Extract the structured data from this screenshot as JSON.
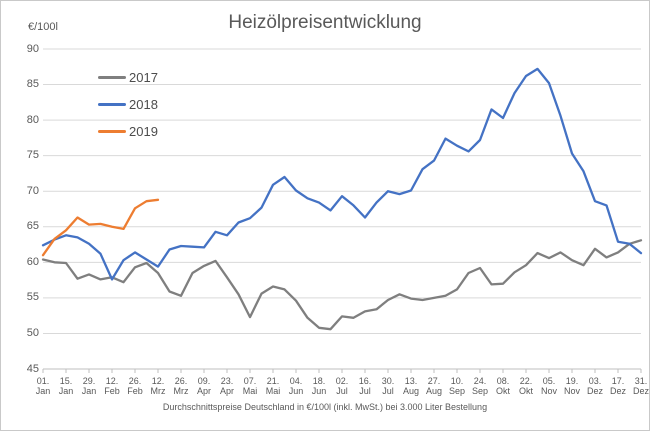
{
  "chart_data": {
    "type": "line",
    "title": "Heizölpreisentwicklung",
    "y_unit_label": "€/100l",
    "subtitle": "Durchschnittspreise Deutschland in €/100l (inkl. MwSt.) bei 3.000 Liter Bestellung",
    "ylim": [
      45,
      90
    ],
    "yticks": [
      45,
      50,
      55,
      60,
      65,
      70,
      75,
      80,
      85,
      90
    ],
    "grid": true,
    "legend_position": "inside-top-left",
    "x_description": "weekly average prices, one point per week from 01. Jan to 31. Dez",
    "x_point_count": 53,
    "xtick_labels": [
      "01. Jan",
      "15. Jan",
      "29. Jan",
      "12. Feb",
      "26. Feb",
      "12. Mrz",
      "26. Mrz",
      "09. Apr",
      "23. Apr",
      "07. Mai",
      "21. Mai",
      "04. Jun",
      "18. Jun",
      "02. Jul",
      "16. Jul",
      "30. Jul",
      "13. Aug",
      "27. Aug",
      "10. Sep",
      "24. Sep",
      "08. Okt",
      "22. Okt",
      "05. Nov",
      "19. Nov",
      "03. Dez",
      "17. Dez",
      "31. Dez"
    ],
    "colors": {
      "grid": "#d9d9d9",
      "axis": "#bfbfbf",
      "text": "#595959"
    },
    "series": [
      {
        "name": "2017",
        "color": "#7f7f7f",
        "values": [
          60.4,
          60.0,
          59.9,
          57.7,
          58.3,
          57.6,
          57.9,
          57.2,
          59.3,
          59.9,
          58.5,
          55.9,
          55.3,
          58.5,
          59.5,
          60.2,
          57.9,
          55.5,
          52.3,
          55.6,
          56.6,
          56.2,
          54.6,
          52.2,
          50.8,
          50.6,
          52.4,
          52.2,
          53.1,
          53.4,
          54.7,
          55.5,
          54.9,
          54.7,
          55.0,
          55.3,
          56.2,
          58.5,
          59.2,
          56.9,
          57.0,
          58.6,
          59.6,
          61.3,
          60.6,
          61.4,
          60.3,
          59.6,
          61.9,
          60.7,
          61.4,
          62.6,
          63.1
        ]
      },
      {
        "name": "2018",
        "color": "#4472c4",
        "values": [
          62.4,
          63.2,
          63.8,
          63.5,
          62.6,
          61.2,
          57.6,
          60.3,
          61.4,
          60.4,
          59.4,
          61.8,
          62.3,
          62.2,
          62.1,
          64.3,
          63.8,
          65.6,
          66.2,
          67.7,
          70.9,
          72.0,
          70.1,
          69.0,
          68.4,
          67.3,
          69.3,
          68.0,
          66.3,
          68.4,
          70.0,
          69.6,
          70.1,
          73.1,
          74.3,
          77.4,
          76.4,
          75.6,
          77.2,
          81.5,
          80.3,
          83.8,
          86.2,
          87.2,
          85.2,
          80.6,
          75.3,
          72.8,
          68.6,
          68.0,
          62.9,
          62.6,
          61.3
        ]
      },
      {
        "name": "2019",
        "color": "#ed7d31",
        "values": [
          61.0,
          63.3,
          64.5,
          66.3,
          65.3,
          65.4,
          65.0,
          64.7,
          67.6,
          68.6,
          68.8
        ]
      }
    ]
  }
}
